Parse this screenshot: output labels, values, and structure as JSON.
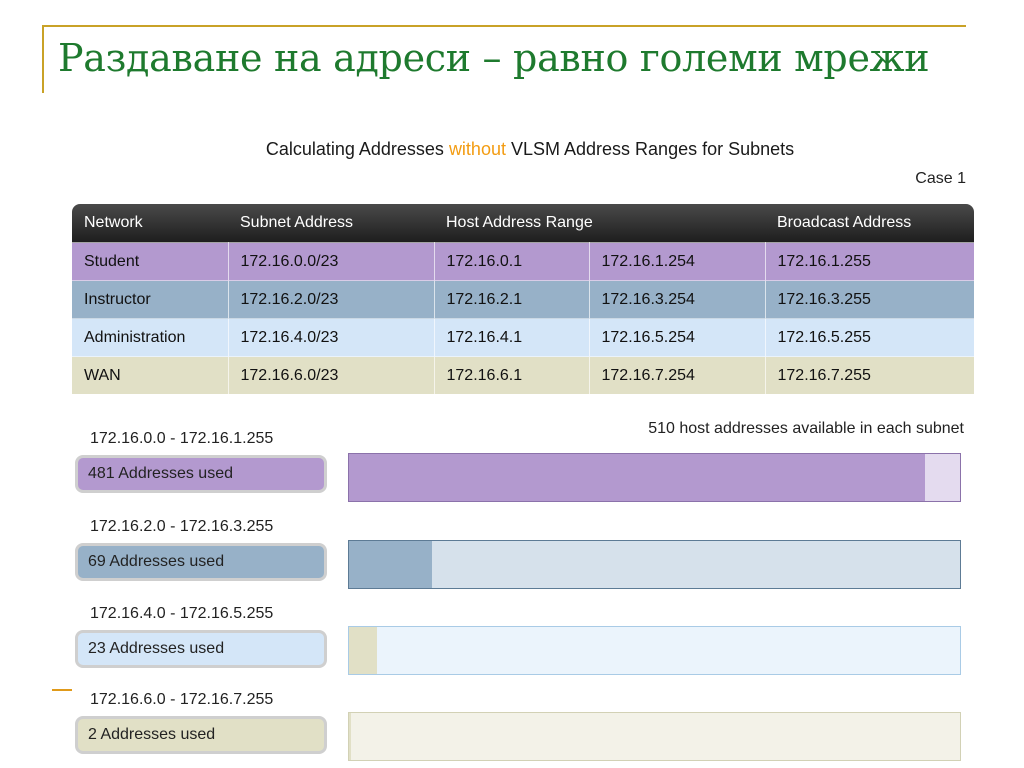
{
  "slide": {
    "title": "Раздаване на адреси – равно големи мрежи"
  },
  "figure": {
    "title_before": "Calculating Addresses ",
    "title_highlight": "without",
    "title_after": " VLSM Address Ranges for Subnets",
    "case_label": "Case 1",
    "available_note": "510 host addresses available in each subnet"
  },
  "colors": {
    "title_green": "#1e7a2e",
    "highlight_orange": "#f39c12",
    "student": "#b399cf",
    "instructor": "#97b1c8",
    "administration": "#d4e6f8",
    "wan": "#e1e0c6"
  },
  "table": {
    "headers": [
      "Network",
      "Subnet Address",
      "Host Address Range",
      "Broadcast Address"
    ],
    "rows": [
      [
        "Student",
        "172.16.0.0/23",
        "172.16.0.1",
        "172.16.1.254",
        "172.16.1.255"
      ],
      [
        "Instructor",
        "172.16.2.0/23",
        "172.16.2.1",
        "172.16.3.254",
        "172.16.3.255"
      ],
      [
        "Administration",
        "172.16.4.0/23",
        "172.16.4.1",
        "172.16.5.254",
        "172.16.5.255"
      ],
      [
        "WAN",
        "172.16.6.0/23",
        "172.16.6.1",
        "172.16.7.254",
        "172.16.7.255"
      ]
    ]
  },
  "subnets": [
    {
      "range": "172.16.0.0  - 172.16.1.255",
      "used_label": "481 Addresses used",
      "used": 481,
      "available": 510
    },
    {
      "range": "172.16.2.0 - 172.16.3.255",
      "used_label": "69 Addresses used",
      "used": 69,
      "available": 510
    },
    {
      "range": "172.16.4.0 - 172.16.5.255",
      "used_label": "23 Addresses used",
      "used": 23,
      "available": 510
    },
    {
      "range": "172.16.6.0 - 172.16.7.255",
      "used_label": "2 Addresses used",
      "used": 2,
      "available": 510
    }
  ]
}
